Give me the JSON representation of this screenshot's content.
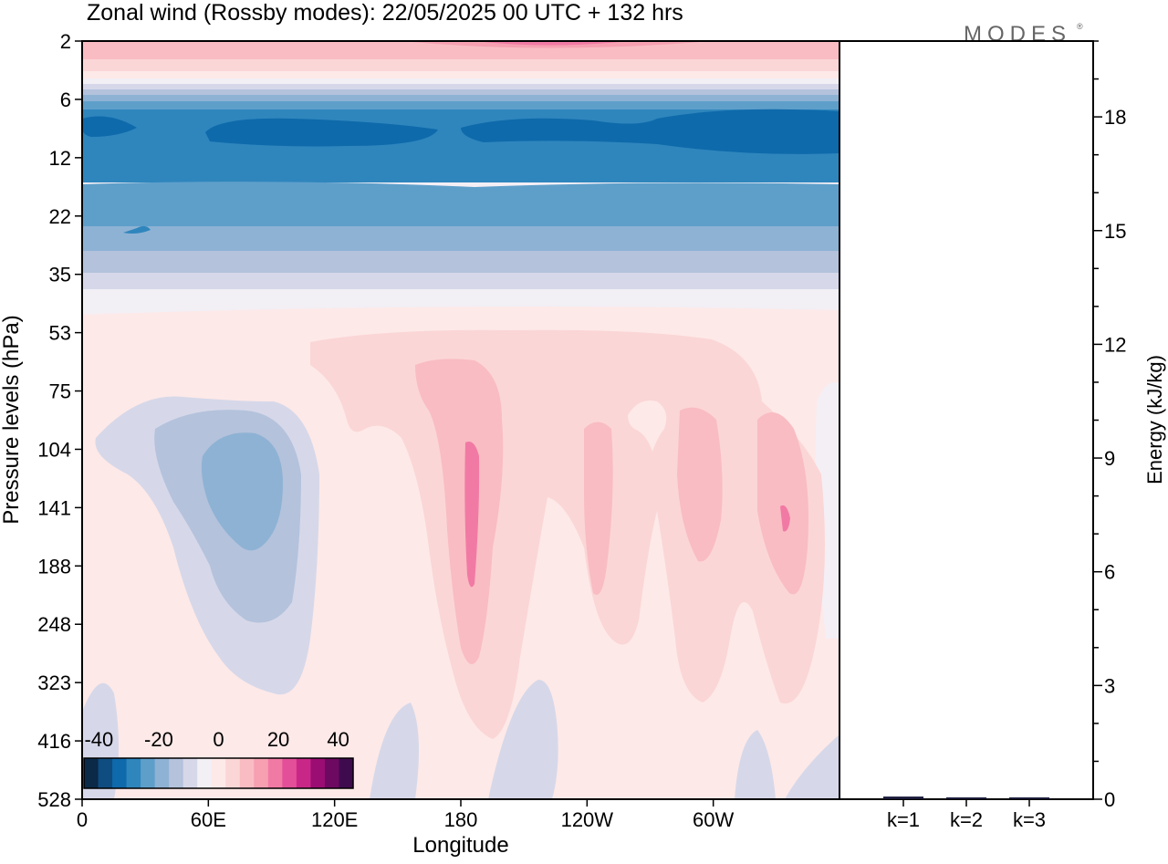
{
  "chart_data": {
    "type": "heatmap",
    "title": "Zonal wind (Rossby modes):  22/05/2025  00 UTC  + 132 hrs",
    "logo": "MODES",
    "xlabel": "Longitude",
    "ylabel": "Pressure levels (hPa)",
    "y2label": "Energy (kJ/kg)",
    "x_ticks": [
      "0",
      "60E",
      "120E",
      "180",
      "120W",
      "60W"
    ],
    "x_tick_degrees": [
      0,
      60,
      120,
      180,
      240,
      300
    ],
    "x_range": [
      0,
      360
    ],
    "y_levels": [
      "2",
      "6",
      "12",
      "22",
      "35",
      "53",
      "75",
      "104",
      "141",
      "188",
      "248",
      "323",
      "416",
      "528"
    ],
    "y_scale": "model levels, top at 2 hPa, bottom at 528 hPa",
    "colorbar": {
      "ticks": [
        "-40",
        "-20",
        "0",
        "20",
        "40"
      ],
      "range": [
        -45,
        45
      ],
      "step": 5,
      "colors": [
        "#0b2a47",
        "#0f4d80",
        "#0f6aab",
        "#2f86bd",
        "#5e9fca",
        "#8eb2d4",
        "#b4c2dc",
        "#d6d8e9",
        "#f2eff5",
        "#fde9e8",
        "#fbd6d6",
        "#f9bcc3",
        "#f6a0b2",
        "#f17aa4",
        "#e34f98",
        "#c92788",
        "#9b0d73",
        "#6e0962",
        "#3e0b4f"
      ]
    },
    "energy": {
      "ticks": [
        "0",
        "3",
        "6",
        "9",
        "12",
        "15",
        "18"
      ],
      "ylim": [
        0,
        20
      ],
      "categories": [
        "k=1",
        "k=2",
        "k=3"
      ],
      "values": [
        0.07,
        0.04,
        0.03
      ],
      "bar_color": "#1a1a3a"
    }
  }
}
